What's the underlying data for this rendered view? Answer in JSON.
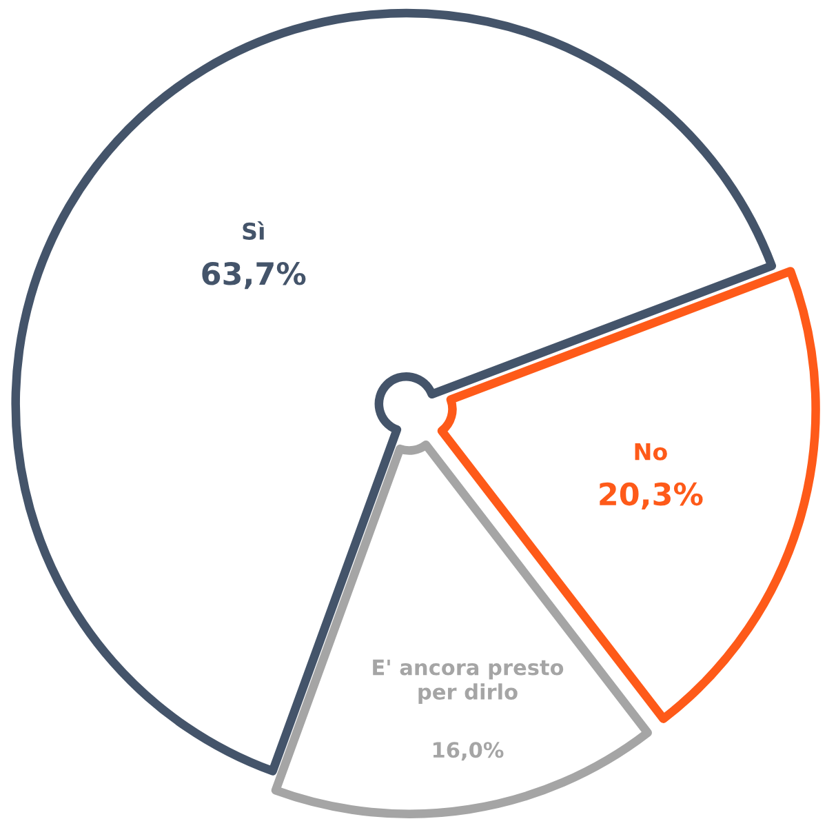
{
  "chart_data": {
    "type": "pie",
    "categories": [
      "Sì",
      "No",
      "E' ancora presto per dirlo"
    ],
    "values": [
      63.7,
      20.3,
      16.0
    ],
    "value_labels": [
      "63,7%",
      "20,3%",
      "16,0%"
    ],
    "colors": [
      "#44546a",
      "#fe5a19",
      "#a5a5a5"
    ],
    "legend": false
  }
}
